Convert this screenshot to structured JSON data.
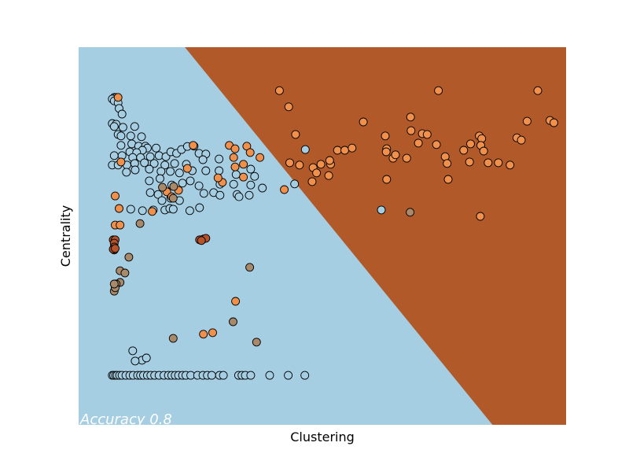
{
  "chart_data": {
    "type": "scatter",
    "title": "",
    "xlabel": "Clustering",
    "ylabel": "Centrality",
    "annotation": "Accuracy 0.8",
    "grid": false,
    "legend": "none",
    "xlim": [
      0,
      1
    ],
    "ylim": [
      0,
      1
    ],
    "axis_ticks": "hidden",
    "decision_regions": [
      {
        "label": "class-0",
        "color": "#a6cee3"
      },
      {
        "label": "class-1",
        "color": "#b15928"
      }
    ],
    "decision_boundary": [
      [
        0.218,
        1.0
      ],
      [
        0.849,
        0.0
      ]
    ],
    "colors": {
      "light_blue": "#a6cee3",
      "orange": "#f0904a",
      "tan": "#a8896a",
      "brown": "#b5532a",
      "marker_edge": "#000000",
      "annotation_text": "#ffffff"
    },
    "series": [
      {
        "color_key": "light_blue",
        "points": [
          [
            0.073,
            0.867
          ],
          [
            0.077,
            0.867
          ],
          [
            0.069,
            0.863
          ],
          [
            0.079,
            0.863
          ],
          [
            0.073,
            0.858
          ],
          [
            0.081,
            0.853
          ],
          [
            0.083,
            0.838
          ],
          [
            0.089,
            0.823
          ],
          [
            0.069,
            0.798
          ],
          [
            0.077,
            0.796
          ],
          [
            0.073,
            0.79
          ],
          [
            0.091,
            0.788
          ],
          [
            0.115,
            0.79
          ],
          [
            0.081,
            0.769
          ],
          [
            0.087,
            0.765
          ],
          [
            0.107,
            0.765
          ],
          [
            0.129,
            0.763
          ],
          [
            0.109,
            0.744
          ],
          [
            0.087,
            0.74
          ],
          [
            0.123,
            0.738
          ],
          [
            0.137,
            0.738
          ],
          [
            0.141,
            0.733
          ],
          [
            0.159,
            0.733
          ],
          [
            0.131,
            0.727
          ],
          [
            0.105,
            0.723
          ],
          [
            0.119,
            0.721
          ],
          [
            0.073,
            0.713
          ],
          [
            0.089,
            0.713
          ],
          [
            0.111,
            0.708
          ],
          [
            0.127,
            0.708
          ],
          [
            0.147,
            0.71
          ],
          [
            0.165,
            0.713
          ],
          [
            0.179,
            0.71
          ],
          [
            0.189,
            0.723
          ],
          [
            0.201,
            0.719
          ],
          [
            0.211,
            0.729
          ],
          [
            0.223,
            0.737
          ],
          [
            0.237,
            0.738
          ],
          [
            0.247,
            0.719
          ],
          [
            0.261,
            0.717
          ],
          [
            0.069,
            0.688
          ],
          [
            0.081,
            0.688
          ],
          [
            0.099,
            0.688
          ],
          [
            0.115,
            0.692
          ],
          [
            0.135,
            0.694
          ],
          [
            0.155,
            0.692
          ],
          [
            0.177,
            0.688
          ],
          [
            0.197,
            0.692
          ],
          [
            0.221,
            0.69
          ],
          [
            0.255,
            0.702
          ],
          [
            0.288,
            0.704
          ],
          [
            0.098,
            0.669
          ],
          [
            0.116,
            0.675
          ],
          [
            0.145,
            0.677
          ],
          [
            0.169,
            0.671
          ],
          [
            0.188,
            0.671
          ],
          [
            0.207,
            0.667
          ],
          [
            0.233,
            0.673
          ],
          [
            0.261,
            0.673
          ],
          [
            0.288,
            0.673
          ],
          [
            0.323,
            0.663
          ],
          [
            0.353,
            0.677
          ],
          [
            0.361,
            0.658
          ],
          [
            0.145,
            0.646
          ],
          [
            0.167,
            0.652
          ],
          [
            0.191,
            0.635
          ],
          [
            0.213,
            0.64
          ],
          [
            0.229,
            0.646
          ],
          [
            0.247,
            0.633
          ],
          [
            0.29,
            0.637
          ],
          [
            0.318,
            0.637
          ],
          [
            0.353,
            0.635
          ],
          [
            0.443,
            0.638
          ],
          [
            0.147,
            0.615
          ],
          [
            0.163,
            0.61
          ],
          [
            0.171,
            0.594
          ],
          [
            0.189,
            0.6
          ],
          [
            0.207,
            0.594
          ],
          [
            0.257,
            0.613
          ],
          [
            0.277,
            0.615
          ],
          [
            0.29,
            0.608
          ],
          [
            0.325,
            0.61
          ],
          [
            0.35,
            0.608
          ],
          [
            0.377,
            0.627
          ],
          [
            0.107,
            0.571
          ],
          [
            0.131,
            0.567
          ],
          [
            0.153,
            0.569
          ],
          [
            0.177,
            0.569
          ],
          [
            0.187,
            0.573
          ],
          [
            0.194,
            0.571
          ],
          [
            0.228,
            0.567
          ],
          [
            0.248,
            0.575
          ],
          [
            0.329,
            0.604
          ],
          [
            0.111,
            0.196
          ],
          [
            0.13,
            0.171
          ],
          [
            0.116,
            0.169
          ],
          [
            0.139,
            0.177
          ],
          [
            0.069,
            0.131
          ],
          [
            0.072,
            0.131
          ],
          [
            0.076,
            0.131
          ],
          [
            0.079,
            0.131
          ],
          [
            0.084,
            0.131
          ],
          [
            0.089,
            0.131
          ],
          [
            0.097,
            0.131
          ],
          [
            0.105,
            0.131
          ],
          [
            0.112,
            0.131
          ],
          [
            0.121,
            0.131
          ],
          [
            0.127,
            0.131
          ],
          [
            0.133,
            0.131
          ],
          [
            0.141,
            0.131
          ],
          [
            0.148,
            0.131
          ],
          [
            0.156,
            0.131
          ],
          [
            0.165,
            0.131
          ],
          [
            0.175,
            0.131
          ],
          [
            0.184,
            0.131
          ],
          [
            0.191,
            0.131
          ],
          [
            0.198,
            0.131
          ],
          [
            0.205,
            0.131
          ],
          [
            0.213,
            0.131
          ],
          [
            0.22,
            0.131
          ],
          [
            0.23,
            0.131
          ],
          [
            0.244,
            0.131
          ],
          [
            0.255,
            0.131
          ],
          [
            0.264,
            0.131
          ],
          [
            0.273,
            0.131
          ],
          [
            0.289,
            0.131
          ],
          [
            0.297,
            0.131
          ],
          [
            0.328,
            0.131
          ],
          [
            0.335,
            0.131
          ],
          [
            0.342,
            0.131
          ],
          [
            0.353,
            0.131
          ],
          [
            0.392,
            0.131
          ],
          [
            0.43,
            0.131
          ],
          [
            0.464,
            0.131
          ],
          [
            0.465,
            0.729
          ],
          [
            0.621,
            0.569
          ]
        ]
      },
      {
        "color_key": "orange",
        "points": [
          [
            0.081,
            0.867
          ],
          [
            0.087,
            0.696
          ],
          [
            0.075,
            0.606
          ],
          [
            0.083,
            0.573
          ],
          [
            0.075,
            0.529
          ],
          [
            0.085,
            0.529
          ],
          [
            0.235,
            0.74
          ],
          [
            0.223,
            0.679
          ],
          [
            0.205,
            0.621
          ],
          [
            0.181,
            0.617
          ],
          [
            0.191,
            0.604
          ],
          [
            0.151,
            0.565
          ],
          [
            0.318,
            0.708
          ],
          [
            0.338,
            0.69
          ],
          [
            0.372,
            0.708
          ],
          [
            0.412,
            0.885
          ],
          [
            0.431,
            0.842
          ],
          [
            0.445,
            0.769
          ],
          [
            0.433,
            0.694
          ],
          [
            0.453,
            0.688
          ],
          [
            0.481,
            0.681
          ],
          [
            0.497,
            0.69
          ],
          [
            0.488,
            0.667
          ],
          [
            0.513,
            0.66
          ],
          [
            0.517,
            0.69
          ],
          [
            0.479,
            0.644
          ],
          [
            0.422,
            0.623
          ],
          [
            0.338,
            0.656
          ],
          [
            0.321,
            0.683
          ],
          [
            0.309,
            0.74
          ],
          [
            0.295,
            0.642
          ],
          [
            0.286,
            0.654
          ],
          [
            0.321,
            0.731
          ],
          [
            0.345,
            0.738
          ],
          [
            0.352,
            0.721
          ],
          [
            0.515,
            0.7
          ],
          [
            0.531,
            0.727
          ],
          [
            0.546,
            0.727
          ],
          [
            0.561,
            0.733
          ],
          [
            0.584,
            0.802
          ],
          [
            0.632,
            0.731
          ],
          [
            0.697,
            0.746
          ],
          [
            0.681,
            0.815
          ],
          [
            0.632,
            0.65
          ],
          [
            0.738,
            0.885
          ],
          [
            0.629,
            0.765
          ],
          [
            0.631,
            0.723
          ],
          [
            0.645,
            0.706
          ],
          [
            0.65,
            0.715
          ],
          [
            0.673,
            0.706
          ],
          [
            0.682,
            0.779
          ],
          [
            0.705,
            0.771
          ],
          [
            0.715,
            0.769
          ],
          [
            0.734,
            0.742
          ],
          [
            0.752,
            0.71
          ],
          [
            0.756,
            0.692
          ],
          [
            0.758,
            0.65
          ],
          [
            0.79,
            0.727
          ],
          [
            0.804,
            0.744
          ],
          [
            0.802,
            0.696
          ],
          [
            0.822,
            0.765
          ],
          [
            0.827,
            0.758
          ],
          [
            0.825,
            0.74
          ],
          [
            0.831,
            0.725
          ],
          [
            0.84,
            0.694
          ],
          [
            0.861,
            0.694
          ],
          [
            0.885,
            0.688
          ],
          [
            0.899,
            0.76
          ],
          [
            0.908,
            0.754
          ],
          [
            0.92,
            0.804
          ],
          [
            0.942,
            0.885
          ],
          [
            0.967,
            0.806
          ],
          [
            0.975,
            0.8
          ],
          [
            1.012,
            0.885
          ],
          [
            0.824,
            0.552
          ],
          [
            0.322,
            0.327
          ],
          [
            0.256,
            0.24
          ],
          [
            0.275,
            0.244
          ]
        ]
      },
      {
        "color_key": "tan",
        "points": [
          [
            0.172,
            0.629
          ],
          [
            0.195,
            0.631
          ],
          [
            0.194,
            0.6
          ],
          [
            0.126,
            0.533
          ],
          [
            0.103,
            0.444
          ],
          [
            0.085,
            0.408
          ],
          [
            0.095,
            0.402
          ],
          [
            0.085,
            0.377
          ],
          [
            0.077,
            0.373
          ],
          [
            0.073,
            0.354
          ],
          [
            0.075,
            0.363
          ],
          [
            0.073,
            0.373
          ],
          [
            0.351,
            0.417
          ],
          [
            0.194,
            0.229
          ],
          [
            0.317,
            0.273
          ],
          [
            0.365,
            0.219
          ],
          [
            0.68,
            0.563
          ]
        ]
      },
      {
        "color_key": "brown",
        "points": [
          [
            0.071,
            0.49
          ],
          [
            0.075,
            0.49
          ],
          [
            0.073,
            0.481
          ],
          [
            0.073,
            0.471
          ],
          [
            0.073,
            0.463
          ],
          [
            0.071,
            0.465
          ],
          [
            0.075,
            0.467
          ],
          [
            0.248,
            0.49
          ],
          [
            0.256,
            0.492
          ],
          [
            0.261,
            0.494
          ],
          [
            0.252,
            0.488
          ]
        ]
      }
    ]
  }
}
